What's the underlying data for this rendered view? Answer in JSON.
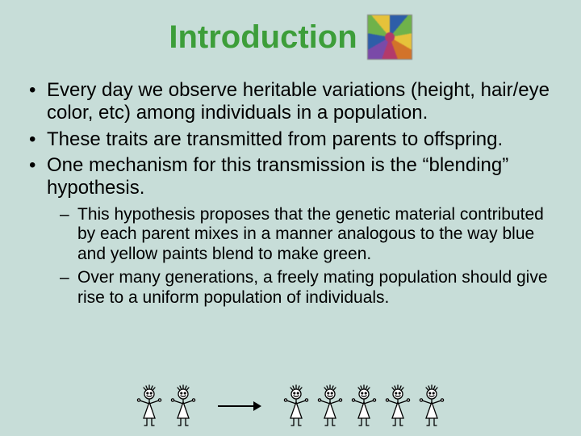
{
  "title": "Introduction",
  "title_color": "#3d9e3a",
  "background_color": "#c7ddd8",
  "bullets": {
    "b1": "Every day we observe heritable variations (height, hair/eye color, etc) among individuals in a population.",
    "b2": "These traits are transmitted from parents to offspring.",
    "b3": "One mechanism for this transmission is the “blending” hypothesis."
  },
  "sub": {
    "s1": "This hypothesis proposes that the genetic material contributed by each parent mixes in a manner analogous to the way blue and yellow paints blend to make green.",
    "s2": "Over many generations, a freely mating population should give rise to a uniform population of individuals."
  },
  "swirl_colors": [
    "#2d5ea8",
    "#6fb24a",
    "#e6c23a",
    "#d2732a",
    "#b33a6a",
    "#7a4aa8"
  ],
  "figure": {
    "left_count": 2,
    "right_count": 5,
    "stroke": "#000000",
    "fill": "#ffffff"
  }
}
